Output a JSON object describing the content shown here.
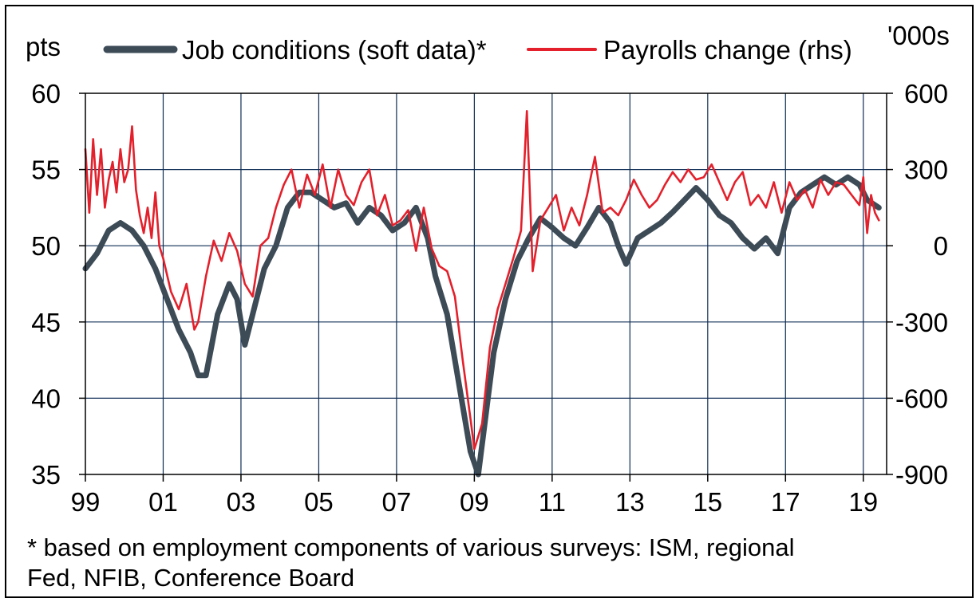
{
  "chart_data": {
    "type": "line",
    "left_unit": "pts",
    "right_unit": "'000s",
    "xlim": [
      1999.0,
      2019.6
    ],
    "left_ylim": [
      35,
      60
    ],
    "right_ylim": [
      -900,
      600
    ],
    "x_ticks": [
      {
        "x": 1999,
        "label": "99"
      },
      {
        "x": 2001,
        "label": "01"
      },
      {
        "x": 2003,
        "label": "03"
      },
      {
        "x": 2005,
        "label": "05"
      },
      {
        "x": 2007,
        "label": "07"
      },
      {
        "x": 2009,
        "label": "09"
      },
      {
        "x": 2011,
        "label": "11"
      },
      {
        "x": 2013,
        "label": "13"
      },
      {
        "x": 2015,
        "label": "15"
      },
      {
        "x": 2017,
        "label": "17"
      },
      {
        "x": 2019,
        "label": "19"
      }
    ],
    "left_ticks": [
      {
        "v": 60,
        "label": "60"
      },
      {
        "v": 55,
        "label": "55"
      },
      {
        "v": 50,
        "label": "50"
      },
      {
        "v": 45,
        "label": "45"
      },
      {
        "v": 40,
        "label": "40"
      },
      {
        "v": 35,
        "label": "35"
      }
    ],
    "right_ticks": [
      {
        "v": 600,
        "label": "600"
      },
      {
        "v": 300,
        "label": "300"
      },
      {
        "v": 0,
        "label": "0"
      },
      {
        "v": -300,
        "label": "-300"
      },
      {
        "v": -600,
        "label": "-600"
      },
      {
        "v": -900,
        "label": "-900"
      }
    ],
    "grid": true,
    "legend_position": "top",
    "series": [
      {
        "name": "Job conditions (soft data)*",
        "axis": "left",
        "color": "#3d4b57",
        "x": [
          1999.0,
          1999.3,
          1999.6,
          1999.9,
          2000.2,
          2000.5,
          2000.8,
          2001.1,
          2001.4,
          2001.7,
          2001.9,
          2002.1,
          2002.4,
          2002.7,
          2002.9,
          2003.1,
          2003.3,
          2003.6,
          2003.9,
          2004.2,
          2004.5,
          2004.8,
          2005.1,
          2005.4,
          2005.7,
          2006.0,
          2006.3,
          2006.6,
          2006.9,
          2007.2,
          2007.5,
          2007.8,
          2008.0,
          2008.3,
          2008.6,
          2008.9,
          2009.1,
          2009.3,
          2009.5,
          2009.8,
          2010.1,
          2010.4,
          2010.7,
          2011.0,
          2011.3,
          2011.6,
          2011.9,
          2012.2,
          2012.5,
          2012.7,
          2012.9,
          2013.2,
          2013.5,
          2013.8,
          2014.1,
          2014.4,
          2014.7,
          2015.0,
          2015.3,
          2015.6,
          2015.9,
          2016.2,
          2016.5,
          2016.8,
          2017.1,
          2017.4,
          2017.7,
          2018.0,
          2018.3,
          2018.6,
          2018.9,
          2019.1,
          2019.4
        ],
        "values": [
          48.5,
          49.5,
          51.0,
          51.5,
          51.0,
          50.0,
          48.5,
          46.5,
          44.5,
          43.0,
          41.5,
          41.5,
          45.5,
          47.5,
          46.5,
          43.5,
          45.5,
          48.5,
          50.0,
          52.5,
          53.5,
          53.5,
          53.0,
          52.5,
          52.8,
          51.5,
          52.5,
          52.0,
          51.0,
          51.5,
          52.5,
          50.5,
          48.0,
          45.5,
          41.0,
          36.5,
          35.0,
          39.0,
          43.0,
          46.5,
          49.0,
          50.5,
          51.8,
          51.2,
          50.5,
          50.0,
          51.2,
          52.5,
          51.5,
          50.0,
          48.8,
          50.5,
          51.0,
          51.5,
          52.2,
          53.0,
          53.8,
          53.0,
          52.0,
          51.5,
          50.5,
          49.8,
          50.5,
          49.5,
          52.5,
          53.5,
          54.0,
          54.5,
          54.0,
          54.5,
          54.0,
          53.0,
          52.5
        ]
      },
      {
        "name": "Payrolls change (rhs)",
        "axis": "right",
        "color": "#e3202b",
        "x": [
          1999.0,
          1999.1,
          1999.2,
          1999.3,
          1999.4,
          1999.5,
          1999.6,
          1999.7,
          1999.8,
          1999.9,
          2000.0,
          2000.1,
          2000.2,
          2000.3,
          2000.4,
          2000.5,
          2000.6,
          2000.7,
          2000.8,
          2000.9,
          2001.0,
          2001.2,
          2001.4,
          2001.6,
          2001.8,
          2001.9,
          2002.1,
          2002.3,
          2002.5,
          2002.7,
          2002.9,
          2003.1,
          2003.3,
          2003.5,
          2003.7,
          2003.9,
          2004.1,
          2004.3,
          2004.5,
          2004.7,
          2004.9,
          2005.1,
          2005.3,
          2005.5,
          2005.7,
          2005.9,
          2006.1,
          2006.3,
          2006.5,
          2006.7,
          2006.9,
          2007.1,
          2007.3,
          2007.5,
          2007.7,
          2007.9,
          2008.1,
          2008.3,
          2008.5,
          2008.7,
          2008.9,
          2009.0,
          2009.2,
          2009.4,
          2009.6,
          2009.8,
          2010.0,
          2010.2,
          2010.35,
          2010.5,
          2010.7,
          2010.9,
          2011.1,
          2011.3,
          2011.5,
          2011.7,
          2011.9,
          2012.1,
          2012.3,
          2012.5,
          2012.7,
          2012.9,
          2013.1,
          2013.3,
          2013.5,
          2013.7,
          2013.9,
          2014.1,
          2014.3,
          2014.5,
          2014.7,
          2014.9,
          2015.1,
          2015.3,
          2015.5,
          2015.7,
          2015.9,
          2016.1,
          2016.3,
          2016.5,
          2016.7,
          2016.9,
          2017.1,
          2017.3,
          2017.5,
          2017.7,
          2017.9,
          2018.1,
          2018.3,
          2018.5,
          2018.7,
          2018.9,
          2019.0,
          2019.1,
          2019.2,
          2019.3,
          2019.4
        ],
        "values": [
          380,
          130,
          420,
          200,
          380,
          150,
          260,
          330,
          210,
          380,
          250,
          300,
          470,
          220,
          120,
          50,
          150,
          30,
          210,
          0,
          -50,
          -180,
          -250,
          -150,
          -330,
          -300,
          -120,
          20,
          -60,
          50,
          -20,
          -150,
          -200,
          0,
          30,
          150,
          240,
          300,
          150,
          280,
          200,
          320,
          150,
          300,
          200,
          160,
          250,
          300,
          120,
          200,
          80,
          100,
          140,
          -20,
          150,
          -10,
          -80,
          -100,
          -200,
          -450,
          -680,
          -800,
          -700,
          -400,
          -250,
          -150,
          -50,
          60,
          530,
          -100,
          100,
          150,
          200,
          60,
          150,
          80,
          200,
          350,
          130,
          150,
          120,
          180,
          260,
          200,
          150,
          180,
          240,
          290,
          250,
          300,
          260,
          270,
          320,
          250,
          180,
          250,
          290,
          160,
          200,
          150,
          250,
          130,
          250,
          180,
          220,
          150,
          260,
          200,
          250,
          240,
          200,
          160,
          270,
          50,
          200,
          130,
          100
        ],
        "annotations": []
      }
    ]
  },
  "legend": [
    {
      "label": "Job conditions (soft data)*",
      "color": "#3d4b57"
    },
    {
      "label": "Payrolls change (rhs)",
      "color": "#e3202b"
    }
  ],
  "footnote": {
    "line1": "* based on employment components of various surveys: ISM, regional",
    "line2": "Fed, NFIB, Conference Board"
  }
}
